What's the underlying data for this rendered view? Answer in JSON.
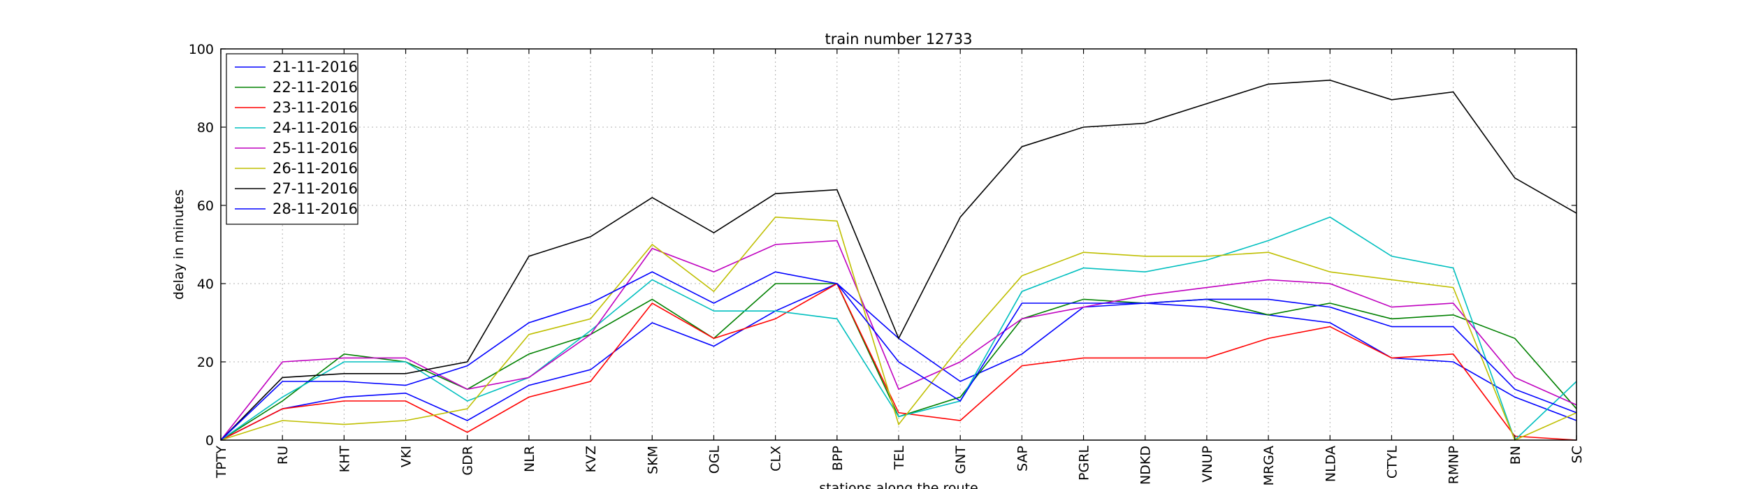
{
  "chart_data": {
    "type": "line",
    "title": "train number 12733",
    "xlabel": "stations along the route",
    "ylabel": "delay in minutes",
    "ylim": [
      0,
      100
    ],
    "yticks": [
      0,
      20,
      40,
      60,
      80,
      100
    ],
    "grid": true,
    "legend_position": "top-left",
    "categories": [
      "TPTY",
      "RU",
      "KHT",
      "VKI",
      "GDR",
      "NLR",
      "KVZ",
      "SKM",
      "OGL",
      "CLX",
      "BPP",
      "TEL",
      "GNT",
      "SAP",
      "PGRL",
      "NDKD",
      "VNUP",
      "MRGA",
      "NLDA",
      "CTYL",
      "RMNP",
      "BN",
      "SC"
    ],
    "series": [
      {
        "name": "21-11-2016",
        "color": "#0000ff",
        "values": [
          0,
          8,
          11,
          12,
          5,
          14,
          18,
          30,
          24,
          33,
          40,
          26,
          15,
          22,
          34,
          35,
          34,
          32,
          30,
          21,
          20,
          11,
          5
        ]
      },
      {
        "name": "22-11-2016",
        "color": "#008000",
        "values": [
          0,
          10,
          22,
          20,
          13,
          22,
          27,
          36,
          26,
          40,
          40,
          6,
          11,
          31,
          36,
          35,
          36,
          32,
          35,
          31,
          32,
          26,
          8
        ]
      },
      {
        "name": "23-11-2016",
        "color": "#ff0000",
        "values": [
          0,
          8,
          10,
          10,
          2,
          11,
          15,
          35,
          26,
          31,
          40,
          7,
          5,
          19,
          21,
          21,
          21,
          26,
          29,
          21,
          22,
          1,
          0
        ]
      },
      {
        "name": "24-11-2016",
        "color": "#00bfbf",
        "values": [
          0,
          11,
          20,
          20,
          10,
          16,
          28,
          41,
          33,
          33,
          31,
          6,
          10,
          38,
          44,
          43,
          46,
          51,
          57,
          47,
          44,
          0,
          15
        ]
      },
      {
        "name": "25-11-2016",
        "color": "#bf00bf",
        "values": [
          0,
          20,
          21,
          21,
          13,
          16,
          27,
          49,
          43,
          50,
          51,
          13,
          20,
          31,
          34,
          37,
          39,
          41,
          40,
          34,
          35,
          16,
          9
        ]
      },
      {
        "name": "26-11-2016",
        "color": "#bfbf00",
        "values": [
          0,
          5,
          4,
          5,
          8,
          27,
          31,
          50,
          38,
          57,
          56,
          4,
          24,
          42,
          48,
          47,
          47,
          48,
          43,
          41,
          39,
          0,
          7
        ]
      },
      {
        "name": "27-11-2016",
        "color": "#000000",
        "values": [
          0,
          16,
          17,
          17,
          20,
          47,
          52,
          62,
          53,
          63,
          64,
          26,
          57,
          75,
          80,
          81,
          86,
          91,
          92,
          87,
          89,
          67,
          58
        ]
      },
      {
        "name": "28-11-2016",
        "color": "#0000ff",
        "values": [
          0,
          15,
          15,
          14,
          19,
          30,
          35,
          43,
          35,
          43,
          40,
          20,
          10,
          35,
          35,
          35,
          36,
          36,
          34,
          29,
          29,
          13,
          7
        ]
      }
    ]
  }
}
